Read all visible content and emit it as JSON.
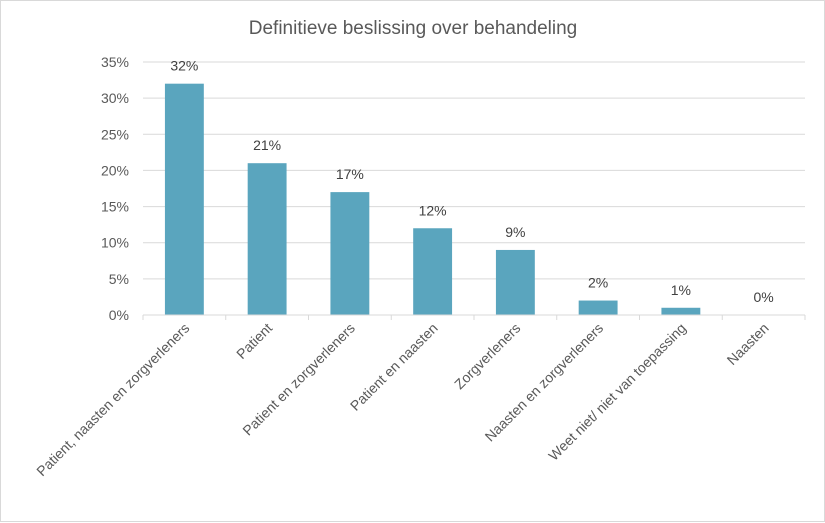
{
  "chart_data": {
    "type": "bar",
    "title": "Definitieve beslissing over behandeling",
    "xlabel": "",
    "ylabel": "",
    "categories": [
      "Patient, naasten en zorgverleners",
      "Patient",
      "Patient en zorgverleners",
      "Patient en naasten",
      "Zorgverleners",
      "Naasten en zorgverleners",
      "Weet niet/ niet van toepassing",
      "Naasten"
    ],
    "values": [
      32,
      21,
      17,
      12,
      9,
      2,
      1,
      0
    ],
    "data_labels": [
      "32%",
      "21%",
      "17%",
      "12%",
      "9%",
      "2%",
      "1%",
      "0%"
    ],
    "ylim": [
      0,
      35
    ],
    "yticks": [
      0,
      5,
      10,
      15,
      20,
      25,
      30,
      35
    ],
    "ytick_labels": [
      "0%",
      "5%",
      "10%",
      "15%",
      "20%",
      "25%",
      "30%",
      "35%"
    ],
    "grid": true,
    "legend": "none",
    "bar_color": "#5aa5be",
    "grid_color": "#d9d9d9"
  }
}
